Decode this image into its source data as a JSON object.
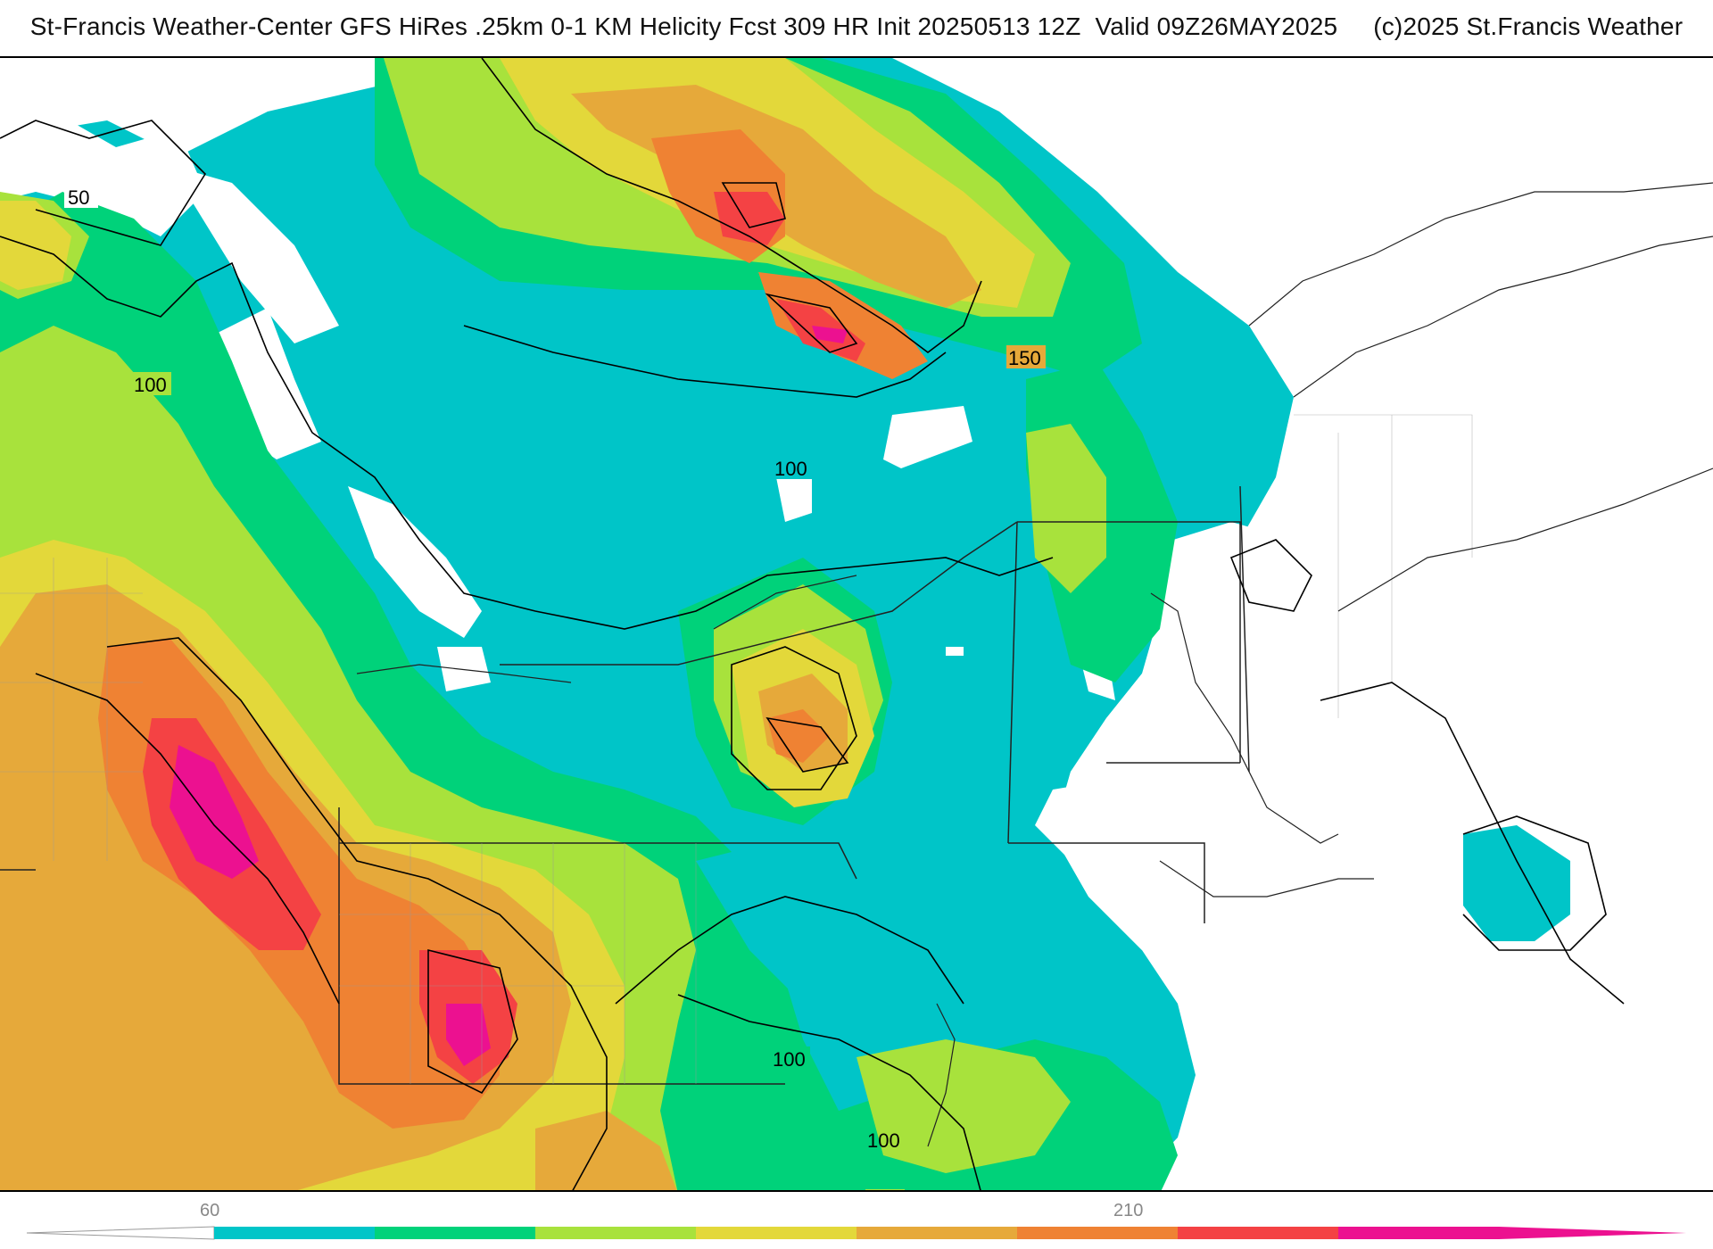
{
  "title": "St-Francis Weather-Center GFS HiRes .25km 0-1 KM Helicity Fcst 309 HR Init 20250513 12Z  Valid 09Z26MAY2025     (c)2025 St.Francis Weather",
  "map": {
    "field": "0-1 KM Helicity",
    "contour_labels": [
      "50",
      "100",
      "150",
      "100",
      "100",
      "100"
    ],
    "fill_colors": {
      "background": "#ffffff",
      "band_60": "#00c5c8",
      "band_80": "#00d27a",
      "band_100": "#a8e23c",
      "band_130": "#e3d83a",
      "band_150": "#e6a93a",
      "band_170": "#ef8233",
      "band_190": "#f44244",
      "band_210": "#ec1190"
    },
    "contour_color": "#000000",
    "border_color": "#222222"
  },
  "colorbar": {
    "tick_labels": [
      "60",
      "210"
    ],
    "colors": [
      "#00c5c8",
      "#00d27a",
      "#a8e23c",
      "#e3d83a",
      "#e6a93a",
      "#ef8233",
      "#f44244",
      "#ec1190"
    ]
  }
}
